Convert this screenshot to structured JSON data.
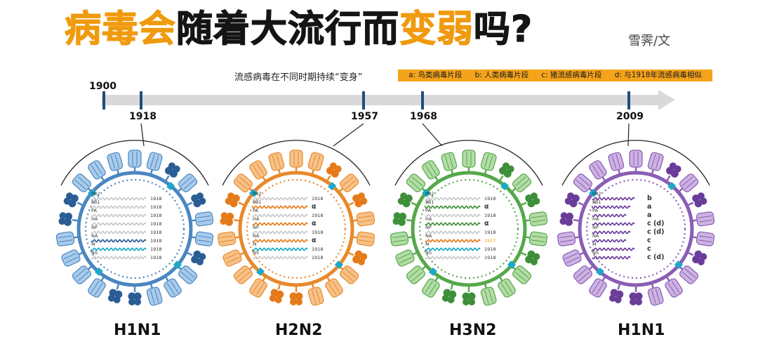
{
  "title": {
    "segments": [
      {
        "text": "病毒会",
        "color": "orange"
      },
      {
        "text": "随着大流行而",
        "color": "black"
      },
      {
        "text": "变弱",
        "color": "orange"
      },
      {
        "text": "吗?",
        "color": "black"
      }
    ]
  },
  "byline": "雪霁/文",
  "subtitle": "流感病毒在不同时期持续“变身”",
  "legend": [
    "a: 鸟类病毒片段",
    "b: 人类病毒片段",
    "c: 猪流感病毒片段",
    "d: 与1918年流感病毒相似"
  ],
  "timeline": {
    "start_label": "1900",
    "ticks": [
      {
        "year": "1918"
      },
      {
        "year": "1957"
      },
      {
        "year": "1968"
      },
      {
        "year": "2009"
      }
    ]
  },
  "colors": {
    "blue": "#4a86c0",
    "blue_light": "#a9cbea",
    "blue_dark": "#2a5d93",
    "orange": "#e8892a",
    "orange_light": "#f6c28a",
    "orange_dark": "#e57a1a",
    "green": "#55a84a",
    "green_light": "#b3dca6",
    "green_dark": "#3f8f3a",
    "purple": "#8a5db5",
    "purple_light": "#cdb3e2",
    "purple_dark": "#6a3d9a",
    "accent_orange": "#f5a31a",
    "teal": "#1aa9c9",
    "timeline_bar": "#d9d9d9",
    "tick": "#1f4e79"
  },
  "segment_names": [
    "PB2",
    "PB1",
    "PA",
    "HA",
    "NP",
    "NA",
    "M",
    "NS"
  ],
  "viruses": [
    {
      "name": "H1N1",
      "theme": "blue",
      "segments": [
        {
          "label": "1918",
          "wave_color": "grey"
        },
        {
          "label": "1918",
          "wave_color": "grey"
        },
        {
          "label": "1918",
          "wave_color": "grey"
        },
        {
          "label": "1918",
          "wave_color": "grey"
        },
        {
          "label": "1918",
          "wave_color": "grey"
        },
        {
          "label": "1918",
          "wave_color": "blue"
        },
        {
          "label": "1918",
          "wave_color": "teal"
        },
        {
          "label": "1918",
          "wave_color": "grey"
        }
      ]
    },
    {
      "name": "H2N2",
      "theme": "orange",
      "segments": [
        {
          "label": "1918",
          "wave_color": "grey"
        },
        {
          "label": "α",
          "wave_color": "orange"
        },
        {
          "label": "1918",
          "wave_color": "grey"
        },
        {
          "label": "α",
          "wave_color": "orange"
        },
        {
          "label": "1918",
          "wave_color": "grey"
        },
        {
          "label": "α",
          "wave_color": "orange"
        },
        {
          "label": "1918",
          "wave_color": "teal"
        },
        {
          "label": "1918",
          "wave_color": "grey"
        }
      ]
    },
    {
      "name": "H3N2",
      "theme": "green",
      "segments": [
        {
          "label": "1918",
          "wave_color": "grey"
        },
        {
          "label": "α",
          "wave_color": "green"
        },
        {
          "label": "1918",
          "wave_color": "grey"
        },
        {
          "label": "α",
          "wave_color": "green"
        },
        {
          "label": "1918",
          "wave_color": "grey"
        },
        {
          "label": "1957",
          "wave_color": "orange",
          "highlight": true
        },
        {
          "label": "1918",
          "wave_color": "teal"
        },
        {
          "label": "1918",
          "wave_color": "grey"
        }
      ]
    },
    {
      "name": "H1N1",
      "theme": "purple",
      "segments": [
        {
          "label": "b",
          "wave_color": "purple"
        },
        {
          "label": "a",
          "wave_color": "purple"
        },
        {
          "label": "a",
          "wave_color": "purple"
        },
        {
          "label": "c (d)",
          "wave_color": "purple"
        },
        {
          "label": "c (d)",
          "wave_color": "purple"
        },
        {
          "label": "c",
          "wave_color": "purple"
        },
        {
          "label": "c",
          "wave_color": "purple"
        },
        {
          "label": "c (d)",
          "wave_color": "purple"
        }
      ]
    }
  ]
}
